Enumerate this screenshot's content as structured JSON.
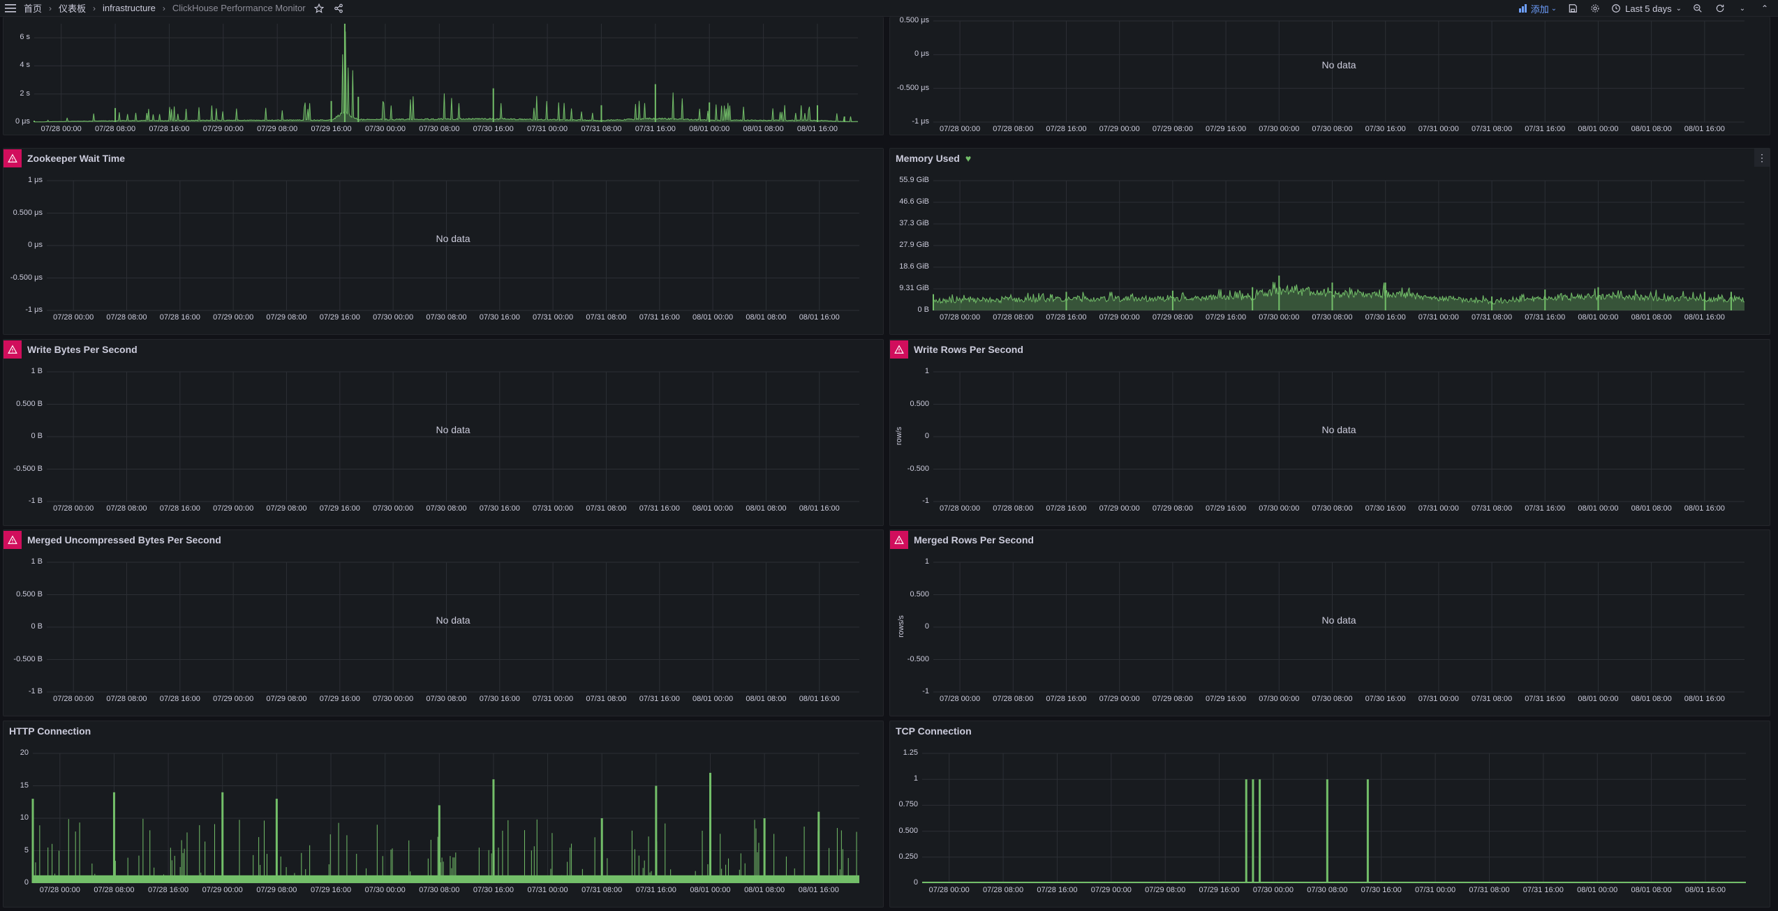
{
  "breadcrumb": {
    "home": "首页",
    "dashboards": "仪表板",
    "folder": "infrastructure",
    "dashboard": "ClickHouse Performance Monitor"
  },
  "toolbar": {
    "add_label": "添加",
    "time_range": "Last 5 days"
  },
  "no_data": "No data",
  "x_ticks": [
    "07/28 00:00",
    "07/28 08:00",
    "07/28 16:00",
    "07/29 00:00",
    "07/29 08:00",
    "07/29 16:00",
    "07/30 00:00",
    "07/30 08:00",
    "07/30 16:00",
    "07/31 00:00",
    "07/31 08:00",
    "07/31 16:00",
    "08/01 00:00",
    "08/01 08:00",
    "08/01 16:00"
  ],
  "colors": {
    "series": "#73bf69",
    "alert": "#d10e5c",
    "accent": "#6e9fff"
  },
  "panels": {
    "query_time": {
      "title": "",
      "y_ticks": [
        "6 s",
        "4 s",
        "2 s",
        "0 μs"
      ],
      "ylim": [
        0,
        7
      ]
    },
    "top_right": {
      "title": "",
      "y_ticks": [
        "0.500 μs",
        "0 μs",
        "-0.500 μs",
        "-1 μs"
      ]
    },
    "zookeeper": {
      "title": "Zookeeper Wait Time",
      "y_ticks": [
        "1 μs",
        "0.500 μs",
        "0 μs",
        "-0.500 μs",
        "-1 μs"
      ]
    },
    "memory": {
      "title": "Memory Used",
      "y_ticks": [
        "55.9 GiB",
        "46.6 GiB",
        "37.3 GiB",
        "27.9 GiB",
        "18.6 GiB",
        "9.31 GiB",
        "0 B"
      ],
      "ylim": [
        0,
        55.9
      ]
    },
    "write_bytes": {
      "title": "Write Bytes Per Second",
      "y_ticks": [
        "1 B",
        "0.500 B",
        "0 B",
        "-0.500 B",
        "-1 B"
      ]
    },
    "write_rows": {
      "title": "Write Rows Per Second",
      "y_ticks": [
        "1",
        "0.500",
        "0",
        "-0.500",
        "-1"
      ],
      "unit": "row/s"
    },
    "merged_bytes": {
      "title": "Merged Uncompressed Bytes Per Second",
      "y_ticks": [
        "1 B",
        "0.500 B",
        "0 B",
        "-0.500 B",
        "-1 B"
      ]
    },
    "merged_rows": {
      "title": "Merged Rows Per Second",
      "y_ticks": [
        "1",
        "0.500",
        "0",
        "-0.500",
        "-1"
      ],
      "unit": "rows/s"
    },
    "http": {
      "title": "HTTP Connection",
      "y_ticks": [
        "20",
        "15",
        "10",
        "5",
        "0"
      ],
      "ylim": [
        0,
        20
      ]
    },
    "tcp": {
      "title": "TCP Connection",
      "y_ticks": [
        "1.25",
        "1",
        "0.750",
        "0.500",
        "0.250",
        "0"
      ],
      "ylim": [
        0,
        1.25
      ]
    }
  },
  "chart_data": [
    {
      "type": "area",
      "panel": "query_time",
      "xlabel": "",
      "ylabel": "",
      "ylim": [
        0,
        7
      ],
      "x": [
        "07/27 20:00",
        "07/28 08:00",
        "07/29 16:00",
        "07/29 18:00",
        "07/29 20:00",
        "07/30 16:00",
        "07/31 08:00",
        "07/31 16:00",
        "08/01 00:00",
        "08/01 16:00",
        "08/01 20:00"
      ],
      "series": [
        {
          "values": [
            0.1,
            1.0,
            1.5,
            7.0,
            1.8,
            2.4,
            1.2,
            2.7,
            1.4,
            1.2,
            0.4
          ]
        }
      ]
    },
    {
      "type": "area",
      "panel": "memory",
      "ylim": [
        0,
        55.9
      ],
      "x": [
        "07/27 20:00",
        "07/28 16:00",
        "07/29 08:00",
        "07/29 20:00",
        "07/30 00:00",
        "07/30 08:00",
        "07/30 16:00",
        "07/31 08:00",
        "07/31 16:00",
        "08/01 00:00",
        "08/01 16:00",
        "08/01 20:00"
      ],
      "series": [
        {
          "values": [
            7,
            8,
            8.5,
            10,
            15,
            12,
            12,
            6,
            9,
            10,
            8,
            8
          ]
        }
      ]
    },
    {
      "type": "bar",
      "panel": "http",
      "ylim": [
        0,
        20
      ],
      "x": [
        "07/27 20:00",
        "07/28 08:00",
        "07/29 00:00",
        "07/29 08:00",
        "07/30 08:00",
        "07/30 16:00",
        "07/31 08:00",
        "07/31 16:00",
        "08/01 00:00",
        "08/01 08:00",
        "08/01 16:00"
      ],
      "series": [
        {
          "values": [
            13,
            14,
            14,
            13,
            12,
            16,
            10,
            15,
            17,
            10,
            11
          ]
        }
      ]
    },
    {
      "type": "bar",
      "panel": "tcp",
      "ylim": [
        0,
        1.25
      ],
      "x": [
        "07/29 20:00",
        "07/29 21:00",
        "07/29 22:00",
        "07/30 08:00",
        "07/30 14:00"
      ],
      "series": [
        {
          "values": [
            1,
            1,
            1,
            1,
            1
          ]
        }
      ]
    }
  ]
}
